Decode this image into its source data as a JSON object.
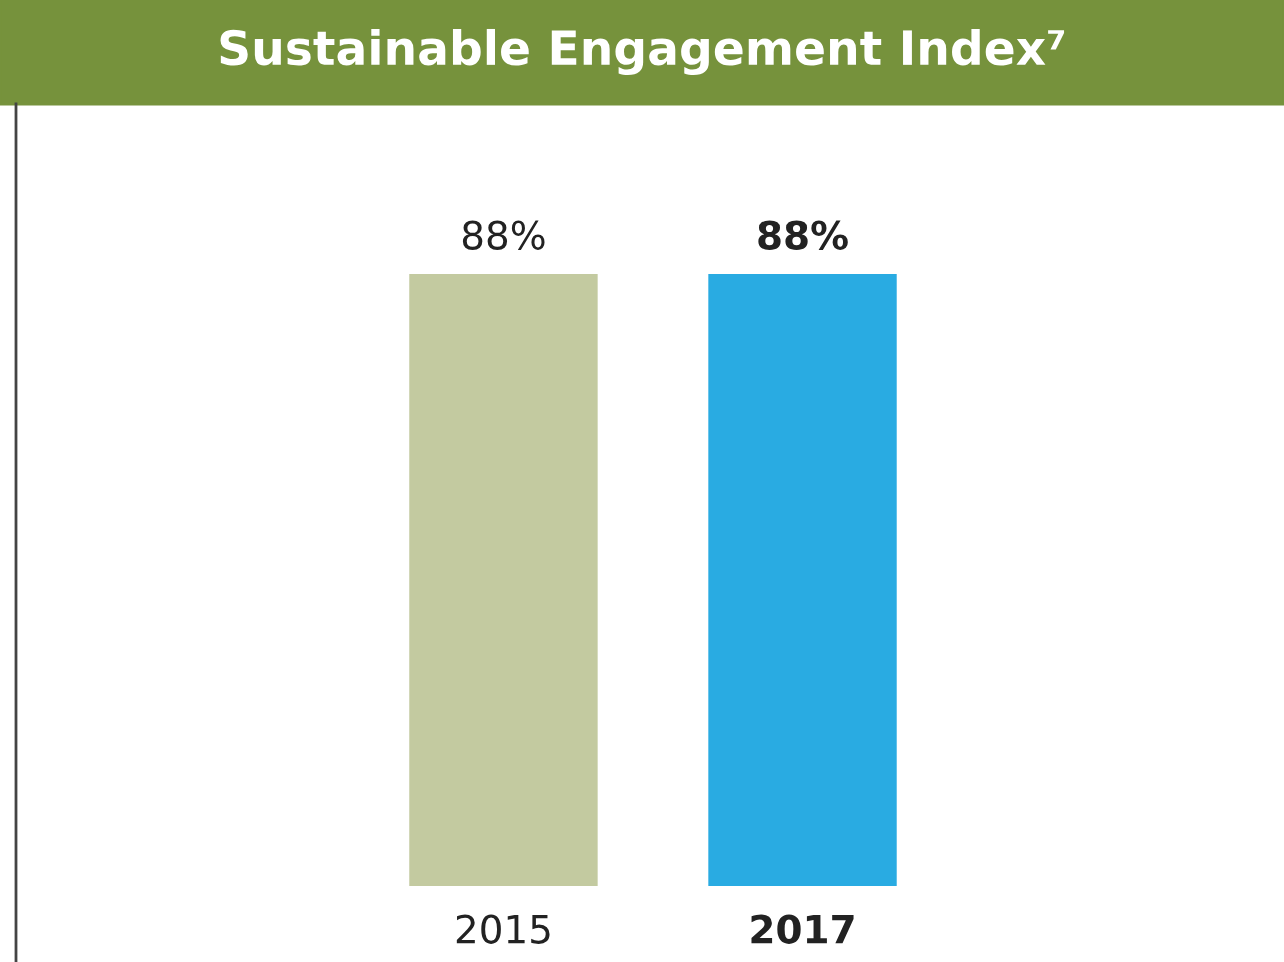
{
  "chart_data": {
    "type": "bar",
    "title": "Sustainable Engagement Index⁷",
    "categories": [
      "2015",
      "2017"
    ],
    "values": [
      88,
      88
    ],
    "colors": [
      "#c3caa0",
      "#29abe2"
    ],
    "value_labels": [
      "88%",
      "88%"
    ],
    "grid": false,
    "legend": false
  }
}
